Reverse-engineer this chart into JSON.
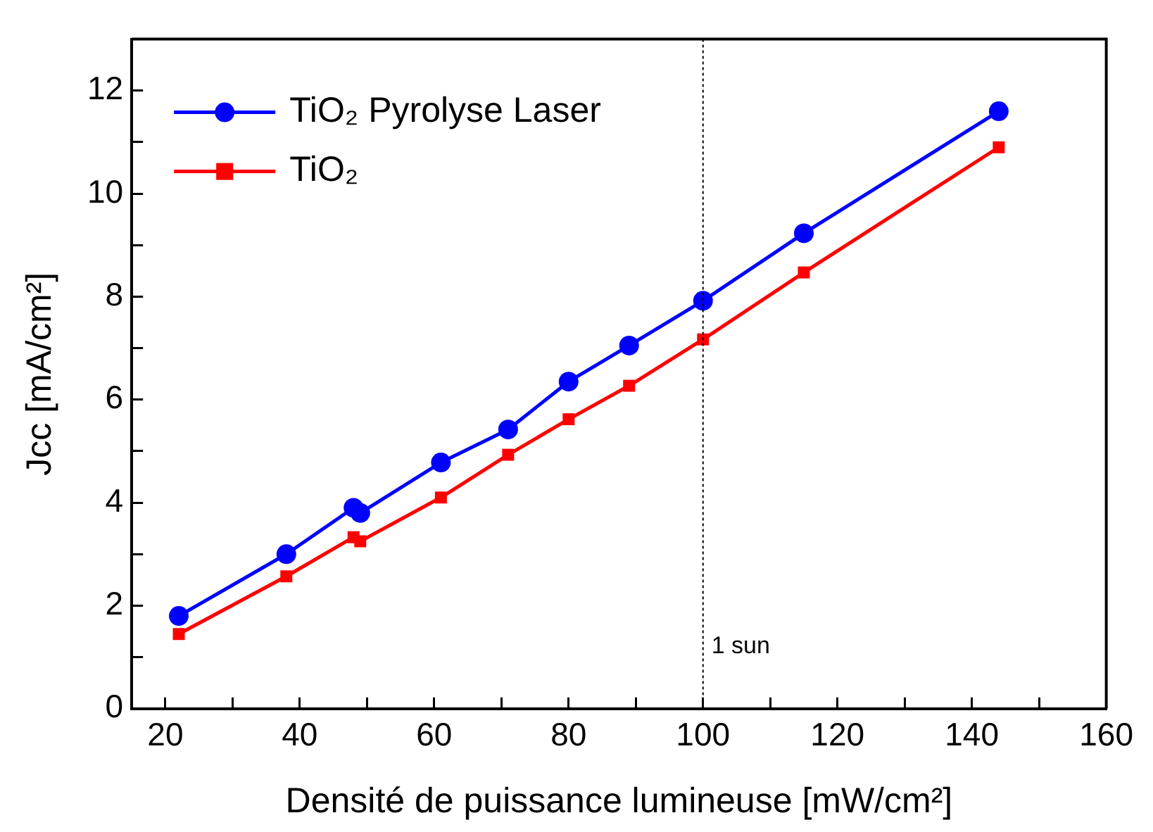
{
  "chart_data": {
    "type": "line",
    "xlabel": "Densité de puissance lumineuse [mW/cm²]",
    "ylabel": "Jcc [mA/cm²]",
    "x": [
      22,
      38,
      48,
      49,
      61,
      71,
      80,
      89,
      100,
      115,
      144
    ],
    "series": [
      {
        "name": "TiO₂ Pyrolyse Laser",
        "color": "#0000ff",
        "marker": "circle",
        "values": [
          1.8,
          3.0,
          3.9,
          3.8,
          4.78,
          5.42,
          6.35,
          7.05,
          7.92,
          9.23,
          11.6
        ]
      },
      {
        "name": "TiO₂",
        "color": "#ff0000",
        "marker": "square",
        "values": [
          1.45,
          2.57,
          3.33,
          3.25,
          4.1,
          4.93,
          5.62,
          6.27,
          7.17,
          8.47,
          10.9
        ]
      }
    ],
    "xlim": [
      15,
      160
    ],
    "xticks": [
      20,
      {
        "value": 30,
        "label": null
      },
      40,
      {
        "value": 50,
        "label": null
      },
      60,
      {
        "value": 70,
        "label": null
      },
      80,
      {
        "value": 90,
        "label": null
      },
      100,
      {
        "value": 110,
        "label": null
      },
      120,
      {
        "value": 130,
        "label": null
      },
      140,
      {
        "value": 150,
        "label": null
      },
      160
    ],
    "ylim": [
      0,
      13
    ],
    "yticks": [
      0,
      {
        "value": 1,
        "label": null
      },
      2,
      {
        "value": 3,
        "label": null
      },
      4,
      {
        "value": 5,
        "label": null
      },
      6,
      {
        "value": 7,
        "label": null
      },
      8,
      {
        "value": 9,
        "label": null
      },
      10,
      {
        "value": 11,
        "label": null
      },
      12
    ],
    "ref_lines": [
      {
        "axis": "x",
        "value": 100,
        "label": "1 sun",
        "color": "#000000",
        "line_style": "dotted"
      }
    ],
    "grid": false,
    "legend": "top left",
    "line_style": "solid"
  }
}
